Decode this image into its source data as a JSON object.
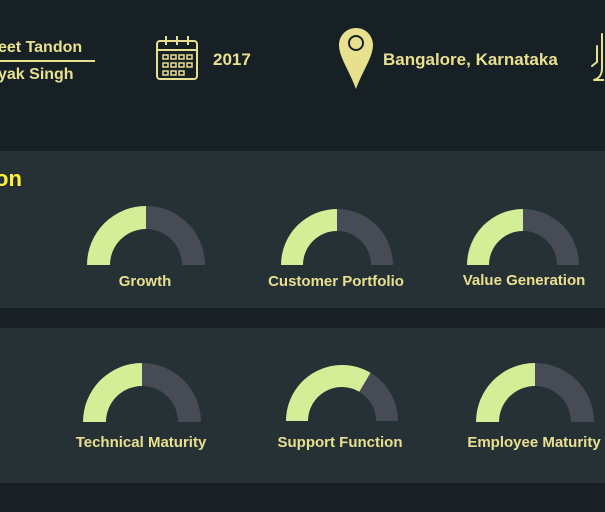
{
  "header": {
    "founder_1": "eet Tandon",
    "founder_2": "yak Singh",
    "year": "2017",
    "location": "Bangalore, Karnataka"
  },
  "sections": [
    {
      "title": "on",
      "metrics": [
        {
          "label": "Growth",
          "value": 0.5
        },
        {
          "label": "Customer Portfolio",
          "value": 0.5
        },
        {
          "label": "Value Generation",
          "value": 0.5
        }
      ]
    },
    {
      "title": "",
      "metrics": [
        {
          "label": "Technical Maturity",
          "value": 0.5
        },
        {
          "label": "Support Function",
          "value": 0.67
        },
        {
          "label": "Employee Maturity",
          "value": 0.5
        }
      ]
    }
  ],
  "colors": {
    "background": "#182024",
    "panel": "#263136",
    "accent": "#e8e08f",
    "highlight": "#fff23a",
    "gauge_fill": "#d3ee97",
    "gauge_track": "#474b55"
  },
  "icons": [
    "calendar-icon",
    "location-pin-icon",
    "hand-icon"
  ]
}
